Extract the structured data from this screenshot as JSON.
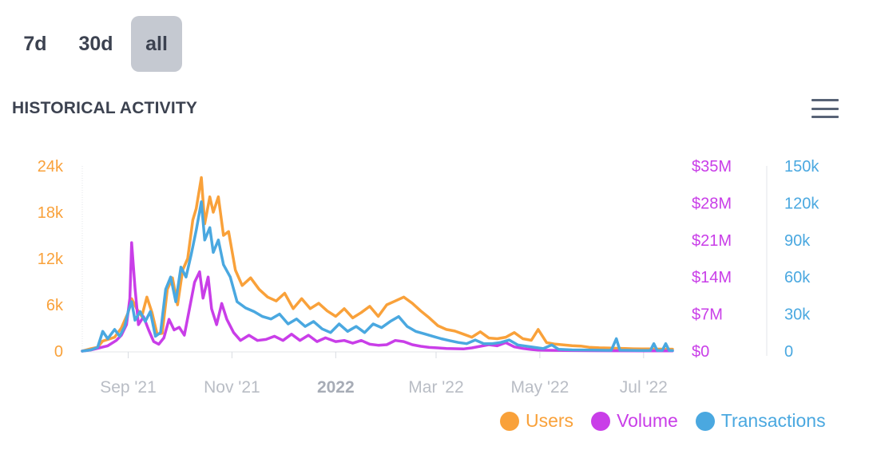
{
  "tabs": [
    {
      "label": "7d",
      "active": false
    },
    {
      "label": "30d",
      "active": false
    },
    {
      "label": "all",
      "active": true
    }
  ],
  "menu_icon": "hamburger-menu-icon",
  "chart_data": {
    "type": "line",
    "title": "HISTORICAL ACTIVITY",
    "grid": false,
    "legend_position": "bottom-right",
    "x_range": [
      "2021-08-05",
      "2022-07-18"
    ],
    "x_ticks": [
      {
        "date": "2021-09-01",
        "label": "Sep '21",
        "bold": false
      },
      {
        "date": "2021-11-01",
        "label": "Nov '21",
        "bold": false
      },
      {
        "date": "2022-01-01",
        "label": "2022",
        "bold": true
      },
      {
        "date": "2022-03-01",
        "label": "Mar '22",
        "bold": false
      },
      {
        "date": "2022-05-01",
        "label": "May '22",
        "bold": false
      },
      {
        "date": "2022-07-01",
        "label": "Jul '22",
        "bold": false
      }
    ],
    "axes": {
      "users": {
        "ylim": [
          0,
          24000
        ],
        "ticks": [
          "0",
          "6k",
          "12k",
          "18k",
          "24k"
        ],
        "color": "#f9a13a"
      },
      "volume": {
        "ylim": [
          0,
          35000000
        ],
        "ticks": [
          "$0",
          "$7M",
          "$14M",
          "$21M",
          "$28M",
          "$35M"
        ],
        "color": "#c93ee8"
      },
      "transactions": {
        "ylim": [
          0,
          150000
        ],
        "ticks": [
          "0",
          "30k",
          "60k",
          "90k",
          "120k",
          "150k"
        ],
        "color": "#4aa8e0"
      }
    },
    "series": [
      {
        "name": "Users",
        "axis": "users",
        "color": "#f9a13a",
        "points": [
          [
            "2021-08-05",
            0
          ],
          [
            "2021-08-10",
            300
          ],
          [
            "2021-08-14",
            500
          ],
          [
            "2021-08-17",
            1300
          ],
          [
            "2021-08-20",
            1500
          ],
          [
            "2021-08-24",
            1800
          ],
          [
            "2021-08-28",
            3000
          ],
          [
            "2021-09-01",
            5000
          ],
          [
            "2021-09-03",
            6800
          ],
          [
            "2021-09-06",
            5500
          ],
          [
            "2021-09-09",
            4500
          ],
          [
            "2021-09-12",
            7000
          ],
          [
            "2021-09-15",
            5000
          ],
          [
            "2021-09-18",
            2200
          ],
          [
            "2021-09-21",
            2300
          ],
          [
            "2021-09-24",
            8000
          ],
          [
            "2021-09-27",
            9500
          ],
          [
            "2021-09-30",
            6000
          ],
          [
            "2021-10-03",
            10500
          ],
          [
            "2021-10-06",
            12000
          ],
          [
            "2021-10-09",
            17000
          ],
          [
            "2021-10-11",
            18500
          ],
          [
            "2021-10-14",
            22500
          ],
          [
            "2021-10-16",
            16500
          ],
          [
            "2021-10-19",
            20000
          ],
          [
            "2021-10-21",
            18000
          ],
          [
            "2021-10-24",
            20000
          ],
          [
            "2021-10-27",
            15000
          ],
          [
            "2021-10-30",
            15500
          ],
          [
            "2021-11-03",
            10500
          ],
          [
            "2021-11-07",
            8500
          ],
          [
            "2021-11-12",
            9500
          ],
          [
            "2021-11-17",
            8000
          ],
          [
            "2021-11-22",
            7000
          ],
          [
            "2021-11-27",
            6500
          ],
          [
            "2021-12-02",
            7500
          ],
          [
            "2021-12-07",
            5500
          ],
          [
            "2021-12-12",
            6800
          ],
          [
            "2021-12-17",
            5500
          ],
          [
            "2021-12-22",
            6200
          ],
          [
            "2021-12-27",
            5200
          ],
          [
            "2022-01-01",
            4500
          ],
          [
            "2022-01-06",
            5500
          ],
          [
            "2022-01-11",
            4300
          ],
          [
            "2022-01-16",
            5000
          ],
          [
            "2022-01-21",
            5800
          ],
          [
            "2022-01-26",
            4500
          ],
          [
            "2022-01-31",
            6000
          ],
          [
            "2022-02-05",
            6500
          ],
          [
            "2022-02-10",
            7000
          ],
          [
            "2022-02-15",
            6200
          ],
          [
            "2022-02-20",
            5200
          ],
          [
            "2022-02-25",
            4300
          ],
          [
            "2022-03-02",
            3300
          ],
          [
            "2022-03-07",
            2800
          ],
          [
            "2022-03-12",
            2600
          ],
          [
            "2022-03-17",
            2200
          ],
          [
            "2022-03-22",
            1800
          ],
          [
            "2022-03-27",
            2500
          ],
          [
            "2022-04-01",
            1700
          ],
          [
            "2022-04-06",
            1600
          ],
          [
            "2022-04-11",
            1800
          ],
          [
            "2022-04-16",
            2400
          ],
          [
            "2022-04-21",
            1600
          ],
          [
            "2022-04-26",
            1400
          ],
          [
            "2022-04-30",
            2800
          ],
          [
            "2022-05-05",
            1100
          ],
          [
            "2022-05-10",
            900
          ],
          [
            "2022-05-15",
            800
          ],
          [
            "2022-05-20",
            700
          ],
          [
            "2022-05-25",
            650
          ],
          [
            "2022-05-30",
            500
          ],
          [
            "2022-06-05",
            420
          ],
          [
            "2022-06-10",
            400
          ],
          [
            "2022-06-15",
            360
          ],
          [
            "2022-06-20",
            330
          ],
          [
            "2022-06-25",
            300
          ],
          [
            "2022-06-30",
            290
          ],
          [
            "2022-07-05",
            280
          ],
          [
            "2022-07-10",
            260
          ],
          [
            "2022-07-18",
            250
          ]
        ]
      },
      {
        "name": "Volume",
        "axis": "volume",
        "color": "#c93ee8",
        "points": [
          [
            "2021-08-05",
            0
          ],
          [
            "2021-08-10",
            200000
          ],
          [
            "2021-08-15",
            600000
          ],
          [
            "2021-08-20",
            1000000
          ],
          [
            "2021-08-25",
            2000000
          ],
          [
            "2021-08-28",
            3000000
          ],
          [
            "2021-08-31",
            5000000
          ],
          [
            "2021-09-02",
            10000000
          ],
          [
            "2021-09-03",
            20500000
          ],
          [
            "2021-09-05",
            12000000
          ],
          [
            "2021-09-07",
            5000000
          ],
          [
            "2021-09-10",
            6500000
          ],
          [
            "2021-09-13",
            4000000
          ],
          [
            "2021-09-16",
            1800000
          ],
          [
            "2021-09-19",
            1300000
          ],
          [
            "2021-09-22",
            2500000
          ],
          [
            "2021-09-25",
            6000000
          ],
          [
            "2021-09-28",
            4000000
          ],
          [
            "2021-10-01",
            4500000
          ],
          [
            "2021-10-04",
            3000000
          ],
          [
            "2021-10-07",
            8000000
          ],
          [
            "2021-10-10",
            13000000
          ],
          [
            "2021-10-13",
            15000000
          ],
          [
            "2021-10-15",
            10000000
          ],
          [
            "2021-10-18",
            14000000
          ],
          [
            "2021-10-20",
            8000000
          ],
          [
            "2021-10-23",
            5000000
          ],
          [
            "2021-10-26",
            9000000
          ],
          [
            "2021-10-29",
            6000000
          ],
          [
            "2021-11-02",
            3500000
          ],
          [
            "2021-11-06",
            2000000
          ],
          [
            "2021-11-11",
            3000000
          ],
          [
            "2021-11-16",
            2000000
          ],
          [
            "2021-11-21",
            2200000
          ],
          [
            "2021-11-26",
            2800000
          ],
          [
            "2021-12-01",
            2000000
          ],
          [
            "2021-12-06",
            3200000
          ],
          [
            "2021-12-11",
            2000000
          ],
          [
            "2021-12-16",
            3000000
          ],
          [
            "2021-12-21",
            1800000
          ],
          [
            "2021-12-26",
            2500000
          ],
          [
            "2022-01-01",
            1800000
          ],
          [
            "2022-01-06",
            2000000
          ],
          [
            "2022-01-11",
            1500000
          ],
          [
            "2022-01-16",
            2000000
          ],
          [
            "2022-01-21",
            1300000
          ],
          [
            "2022-01-26",
            1100000
          ],
          [
            "2022-01-31",
            1200000
          ],
          [
            "2022-02-05",
            2000000
          ],
          [
            "2022-02-10",
            1800000
          ],
          [
            "2022-02-15",
            1200000
          ],
          [
            "2022-02-20",
            900000
          ],
          [
            "2022-02-25",
            700000
          ],
          [
            "2022-03-02",
            600000
          ],
          [
            "2022-03-07",
            500000
          ],
          [
            "2022-03-12",
            450000
          ],
          [
            "2022-03-17",
            400000
          ],
          [
            "2022-03-22",
            600000
          ],
          [
            "2022-03-27",
            900000
          ],
          [
            "2022-04-01",
            1200000
          ],
          [
            "2022-04-06",
            1000000
          ],
          [
            "2022-04-11",
            1600000
          ],
          [
            "2022-04-16",
            800000
          ],
          [
            "2022-04-21",
            500000
          ],
          [
            "2022-04-26",
            300000
          ],
          [
            "2022-04-30",
            200000
          ],
          [
            "2022-05-05",
            150000
          ],
          [
            "2022-05-15",
            100000
          ],
          [
            "2022-05-30",
            80000
          ],
          [
            "2022-06-15",
            60000
          ],
          [
            "2022-06-30",
            40000
          ],
          [
            "2022-07-18",
            30000
          ]
        ]
      },
      {
        "name": "Transactions",
        "axis": "transactions",
        "color": "#4aa8e0",
        "points": [
          [
            "2021-08-05",
            0
          ],
          [
            "2021-08-10",
            1000
          ],
          [
            "2021-08-14",
            3000
          ],
          [
            "2021-08-17",
            16000
          ],
          [
            "2021-08-20",
            10000
          ],
          [
            "2021-08-24",
            17500
          ],
          [
            "2021-08-27",
            12000
          ],
          [
            "2021-08-30",
            20000
          ],
          [
            "2021-09-01",
            32000
          ],
          [
            "2021-09-03",
            40000
          ],
          [
            "2021-09-05",
            25000
          ],
          [
            "2021-09-08",
            32000
          ],
          [
            "2021-09-11",
            24000
          ],
          [
            "2021-09-14",
            32000
          ],
          [
            "2021-09-17",
            12000
          ],
          [
            "2021-09-20",
            15000
          ],
          [
            "2021-09-23",
            50000
          ],
          [
            "2021-09-26",
            60000
          ],
          [
            "2021-09-29",
            40000
          ],
          [
            "2021-10-02",
            68000
          ],
          [
            "2021-10-05",
            60000
          ],
          [
            "2021-10-08",
            78000
          ],
          [
            "2021-10-11",
            98000
          ],
          [
            "2021-10-14",
            121000
          ],
          [
            "2021-10-16",
            90000
          ],
          [
            "2021-10-19",
            100000
          ],
          [
            "2021-10-21",
            80000
          ],
          [
            "2021-10-24",
            90000
          ],
          [
            "2021-10-27",
            70000
          ],
          [
            "2021-10-31",
            60000
          ],
          [
            "2021-11-04",
            40000
          ],
          [
            "2021-11-09",
            35000
          ],
          [
            "2021-11-14",
            32000
          ],
          [
            "2021-11-19",
            28000
          ],
          [
            "2021-11-24",
            26000
          ],
          [
            "2021-11-29",
            30000
          ],
          [
            "2021-12-04",
            22000
          ],
          [
            "2021-12-09",
            26000
          ],
          [
            "2021-12-14",
            20000
          ],
          [
            "2021-12-19",
            24000
          ],
          [
            "2021-12-24",
            18000
          ],
          [
            "2021-12-29",
            15000
          ],
          [
            "2022-01-03",
            22000
          ],
          [
            "2022-01-08",
            16000
          ],
          [
            "2022-01-13",
            20000
          ],
          [
            "2022-01-18",
            15000
          ],
          [
            "2022-01-23",
            22000
          ],
          [
            "2022-01-28",
            19000
          ],
          [
            "2022-02-02",
            24000
          ],
          [
            "2022-02-07",
            28000
          ],
          [
            "2022-02-12",
            20000
          ],
          [
            "2022-02-17",
            16000
          ],
          [
            "2022-02-22",
            14000
          ],
          [
            "2022-02-27",
            12000
          ],
          [
            "2022-03-04",
            10000
          ],
          [
            "2022-03-09",
            8500
          ],
          [
            "2022-03-14",
            7000
          ],
          [
            "2022-03-19",
            6000
          ],
          [
            "2022-03-24",
            9000
          ],
          [
            "2022-03-29",
            6000
          ],
          [
            "2022-04-03",
            6000
          ],
          [
            "2022-04-08",
            7000
          ],
          [
            "2022-04-13",
            9000
          ],
          [
            "2022-04-18",
            5000
          ],
          [
            "2022-04-23",
            4000
          ],
          [
            "2022-04-28",
            3000
          ],
          [
            "2022-05-03",
            2000
          ],
          [
            "2022-05-08",
            5000
          ],
          [
            "2022-05-12",
            1500
          ],
          [
            "2022-05-20",
            1000
          ],
          [
            "2022-06-01",
            800
          ],
          [
            "2022-06-12",
            600
          ],
          [
            "2022-06-15",
            10000
          ],
          [
            "2022-06-17",
            700
          ],
          [
            "2022-06-28",
            500
          ],
          [
            "2022-07-05",
            500
          ],
          [
            "2022-07-07",
            6000
          ],
          [
            "2022-07-09",
            500
          ],
          [
            "2022-07-12",
            500
          ],
          [
            "2022-07-14",
            6000
          ],
          [
            "2022-07-16",
            500
          ],
          [
            "2022-07-18",
            400
          ]
        ]
      }
    ]
  }
}
